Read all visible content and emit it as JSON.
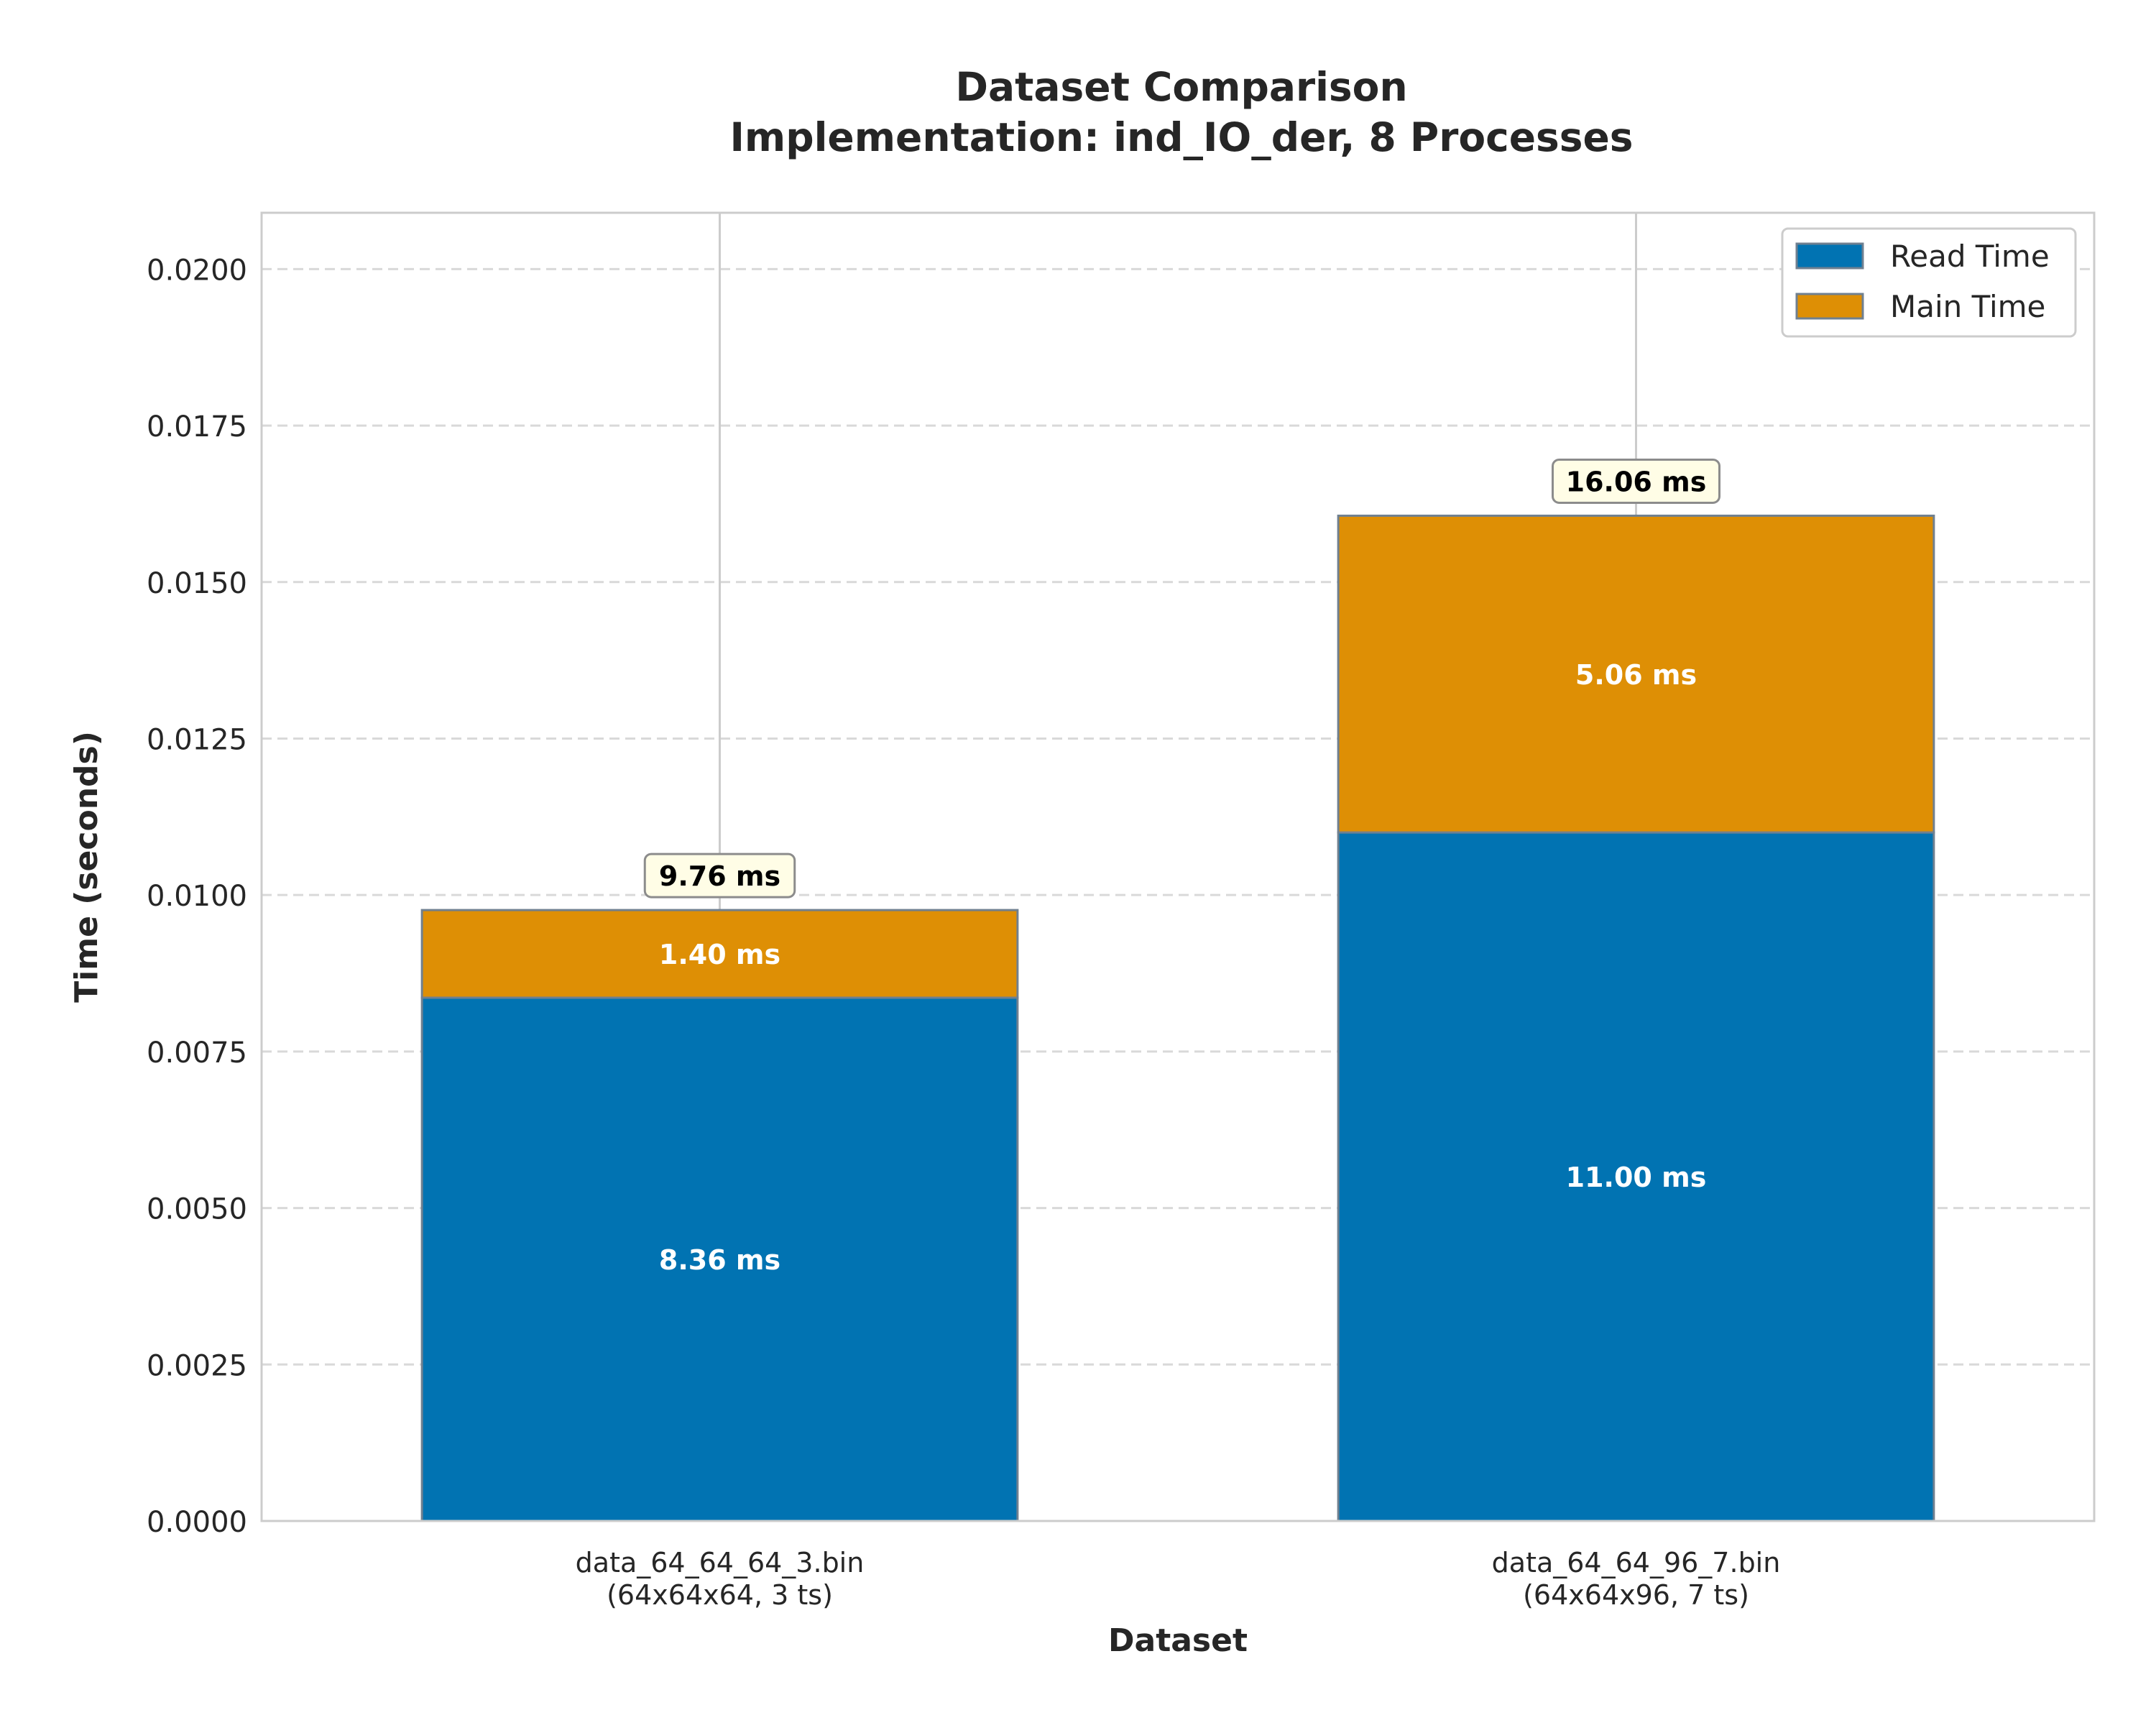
{
  "chart_data": {
    "type": "bar",
    "stacked": true,
    "title": "Dataset Comparison",
    "subtitle": "Implementation: ind_IO_der, 8 Processes",
    "xlabel": "Dataset",
    "ylabel": "Time (seconds)",
    "ylim": [
      0,
      0.0209
    ],
    "yticks": [
      "0.0000",
      "0.0025",
      "0.0050",
      "0.0075",
      "0.0100",
      "0.0125",
      "0.0150",
      "0.0175",
      "0.0200"
    ],
    "grid": "dashed horizontal",
    "legend_position": "top-right",
    "categories": [
      {
        "line1": "data_64_64_64_3.bin",
        "line2": "(64x64x64, 3 ts)"
      },
      {
        "line1": "data_64_64_96_7.bin",
        "line2": "(64x64x96, 7 ts)"
      }
    ],
    "series": [
      {
        "name": "Read Time",
        "color": "#0173b2",
        "values": [
          0.00836,
          0.011
        ],
        "labels": [
          "8.36 ms",
          "11.00 ms"
        ]
      },
      {
        "name": "Main Time",
        "color": "#de8f05",
        "values": [
          0.0014,
          0.00506
        ],
        "labels": [
          "1.40 ms",
          "5.06 ms"
        ]
      }
    ],
    "totals": {
      "values": [
        0.00976,
        0.01606
      ],
      "labels": [
        "9.76 ms",
        "16.06 ms"
      ]
    }
  }
}
